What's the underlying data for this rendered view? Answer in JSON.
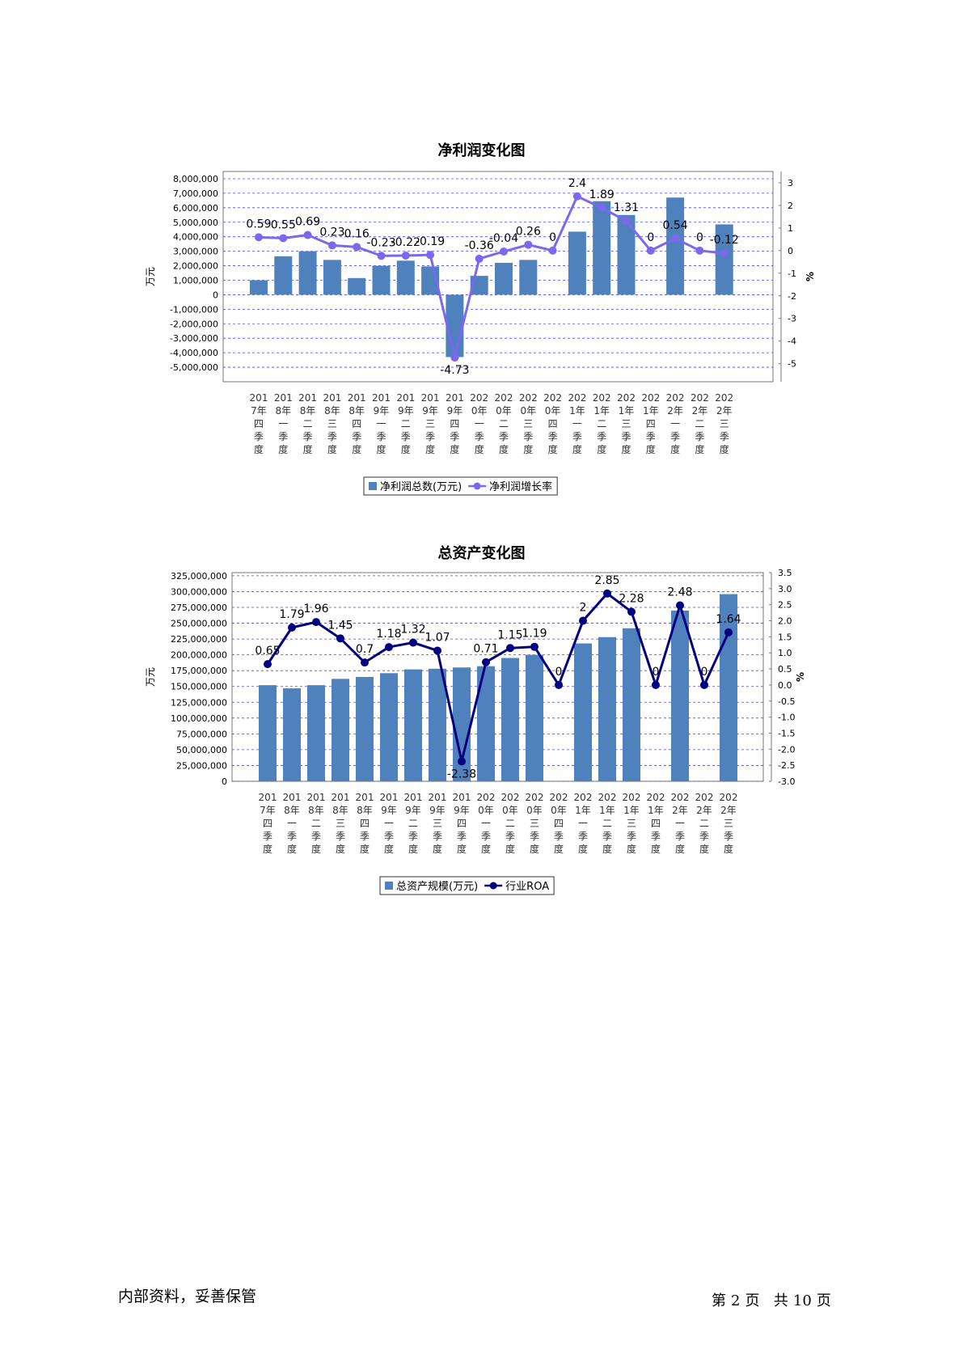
{
  "categories": [
    "2017年四季度",
    "2018年一季度",
    "2018年二季度",
    "2018年三季度",
    "2018年四季度",
    "2019年一季度",
    "2019年二季度",
    "2019年三季度",
    "2019年四季度",
    "2020年一季度",
    "2020年二季度",
    "2020年三季度",
    "2020年四季度",
    "2021年一季度",
    "2021年二季度",
    "2021年三季度",
    "2021年四季度",
    "2022年一季度",
    "2022年二季度",
    "2022年三季度"
  ],
  "chart_data": [
    {
      "type": "bar",
      "title": "净利润变化图",
      "ylabel": "万元",
      "y2label": "%",
      "ylim": [
        -6000000,
        8500000
      ],
      "y2lim": [
        -5.8,
        3.5
      ],
      "yticks": [
        "8,000,000",
        "7,000,000",
        "6,000,000",
        "5,000,000",
        "4,000,000",
        "3,000,000",
        "2,000,000",
        "1,000,000",
        "0",
        "-1,000,000",
        "-2,000,000",
        "-3,000,000",
        "-4,000,000",
        "-5,000,000"
      ],
      "ytick_values": [
        8000000,
        7000000,
        6000000,
        5000000,
        4000000,
        3000000,
        2000000,
        1000000,
        0,
        -1000000,
        -2000000,
        -3000000,
        -4000000,
        -5000000
      ],
      "y2ticks": [
        "3",
        "2",
        "1",
        "0",
        "-1",
        "-2",
        "-3",
        "-4",
        "-5"
      ],
      "y2tick_values": [
        3,
        2,
        1,
        0,
        -1,
        -2,
        -3,
        -4,
        -5
      ],
      "grid": true,
      "legend_position": "bottom",
      "series": [
        {
          "name": "净利润总数(万元)",
          "kind": "bar",
          "axis": "left",
          "color": "#4f81bd",
          "values": [
            1000000,
            2650000,
            3000000,
            2400000,
            1150000,
            2000000,
            2350000,
            1950000,
            -4300000,
            1300000,
            2200000,
            2400000,
            null,
            4350000,
            6450000,
            5500000,
            null,
            6700000,
            null,
            4850000
          ]
        },
        {
          "name": "净利润增长率",
          "kind": "line",
          "axis": "right",
          "color": "#7b68ee",
          "values": [
            0.59,
            0.55,
            0.69,
            0.23,
            0.16,
            -0.23,
            -0.22,
            -0.19,
            -4.73,
            -0.36,
            -0.04,
            0.26,
            0,
            2.4,
            1.89,
            1.31,
            0,
            0.54,
            0,
            -0.12
          ],
          "labels": [
            "0.59",
            "0.55",
            "0.69",
            "0.23",
            "0.16",
            "-0.23",
            "-0.22",
            "-0.19",
            "-4.73",
            "-0.36",
            "-0.04",
            "0.26",
            "0",
            "2.4",
            "1.89",
            "1.31",
            "0",
            "0.54",
            "0",
            "-0.12"
          ]
        }
      ]
    },
    {
      "type": "bar",
      "title": "总资产变化图",
      "ylabel": "万元",
      "y2label": "%",
      "ylim": [
        0,
        330000000
      ],
      "y2lim": [
        -3.0,
        3.5
      ],
      "yticks": [
        "325,000,000",
        "300,000,000",
        "275,000,000",
        "250,000,000",
        "225,000,000",
        "200,000,000",
        "175,000,000",
        "150,000,000",
        "125,000,000",
        "100,000,000",
        "75,000,000",
        "50,000,000",
        "25,000,000",
        "0"
      ],
      "ytick_values": [
        325000000,
        300000000,
        275000000,
        250000000,
        225000000,
        200000000,
        175000000,
        150000000,
        125000000,
        100000000,
        75000000,
        50000000,
        25000000,
        0
      ],
      "y2ticks": [
        "3.5",
        "3.0",
        "2.5",
        "2.0",
        "1.5",
        "1.0",
        "0.5",
        "0.0",
        "-0.5",
        "-1.0",
        "-1.5",
        "-2.0",
        "-2.5",
        "-3.0"
      ],
      "y2tick_values": [
        3.5,
        3.0,
        2.5,
        2.0,
        1.5,
        1.0,
        0.5,
        0.0,
        -0.5,
        -1.0,
        -1.5,
        -2.0,
        -2.5,
        -3.0
      ],
      "grid": true,
      "legend_position": "bottom",
      "series": [
        {
          "name": "总资产规模(万元)",
          "kind": "bar",
          "axis": "left",
          "color": "#4f81bd",
          "values": [
            152000000,
            147000000,
            152000000,
            162000000,
            165000000,
            171000000,
            177000000,
            178000000,
            180000000,
            182000000,
            195000000,
            200000000,
            null,
            218000000,
            228000000,
            242000000,
            null,
            270000000,
            null,
            296000000
          ]
        },
        {
          "name": "行业ROA",
          "kind": "line",
          "axis": "right",
          "color": "#000080",
          "values": [
            0.65,
            1.79,
            1.96,
            1.45,
            0.7,
            1.18,
            1.32,
            1.07,
            -2.38,
            0.71,
            1.15,
            1.19,
            0,
            2,
            2.85,
            2.28,
            0,
            2.48,
            0,
            1.64
          ],
          "labels": [
            "0.65",
            "1.79",
            "1.96",
            "1.45",
            "0.7",
            "1.18",
            "1.32",
            "1.07",
            "-2.38",
            "0.71",
            "1.15",
            "1.19",
            "0",
            "2",
            "2.85",
            "2.28",
            "0",
            "2.48",
            "0",
            "1.64"
          ]
        }
      ]
    }
  ],
  "footer": {
    "left": "内部资料，妥善保管",
    "page_prefix": "第",
    "page_num": "2",
    "page_unit": "页",
    "total_prefix": "共",
    "total_num": "10",
    "total_unit": "页"
  }
}
